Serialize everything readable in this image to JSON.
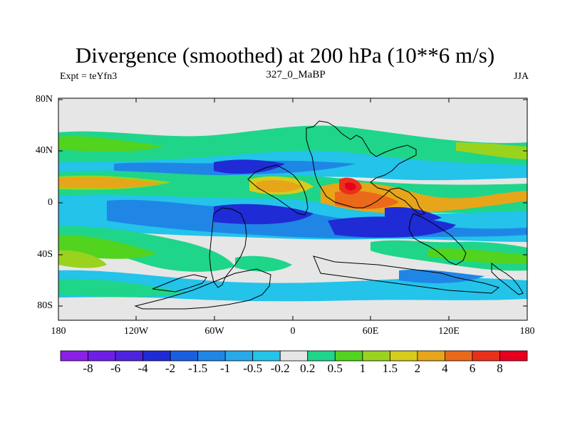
{
  "header": {
    "title": "Divergence (smoothed) at 200 hPa (10**6 m/s)",
    "left": "Expt = teYfn3",
    "center": "327_0_MaBP",
    "right": "JJA"
  },
  "axes": {
    "y_ticks": [
      "80N",
      "40N",
      "0",
      "40S",
      "80S"
    ],
    "x_ticks": [
      "180",
      "120W",
      "60W",
      "0",
      "60E",
      "120E",
      "180"
    ]
  },
  "colorbar": {
    "labels": [
      "-8",
      "-6",
      "-4",
      "-2",
      "-1.5",
      "-1",
      "-0.5",
      "-0.2",
      "0.2",
      "0.5",
      "1",
      "1.5",
      "2",
      "4",
      "6",
      "8"
    ],
    "colors": [
      "#8a1fe6",
      "#6e1ee6",
      "#4f22e0",
      "#1f2bd4",
      "#1a5fe0",
      "#1f86e6",
      "#28a9e8",
      "#23c3ea",
      "#e6e6e6",
      "#1fd58a",
      "#52d31e",
      "#9ad31e",
      "#d6cc1a",
      "#e7a51a",
      "#ea6a1a",
      "#e8301a",
      "#e6001e"
    ]
  },
  "colors": {
    "land_fill": "#e6e6e6",
    "frame": "#000000"
  }
}
